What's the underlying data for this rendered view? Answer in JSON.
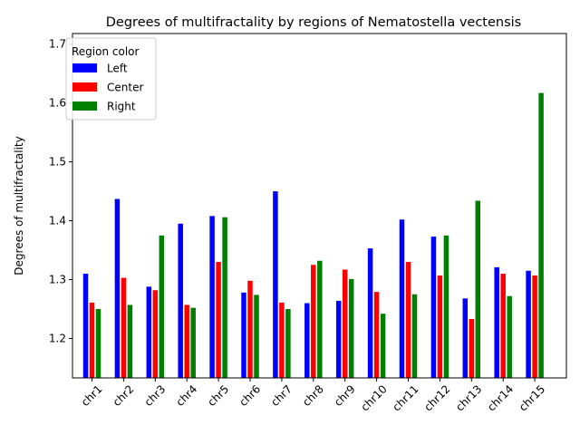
{
  "chart_data": {
    "type": "bar",
    "title": "Degrees of multifractality by regions of Nematostella vectensis",
    "xlabel": "",
    "ylabel": "Degrees of multifractality",
    "ylim": [
      1.133,
      1.718
    ],
    "yticks": [
      "1.2",
      "1.3",
      "1.4",
      "1.5",
      "1.6",
      "1.7"
    ],
    "grid": false,
    "legend": {
      "title": "Region color",
      "placement": "upper-left"
    },
    "categories": [
      "chr1",
      "chr2",
      "chr3",
      "chr4",
      "chr5",
      "chr6",
      "chr7",
      "chr8",
      "chr9",
      "chr10",
      "chr11",
      "chr12",
      "chr13",
      "chr14",
      "chr15"
    ],
    "series": [
      {
        "name": "Left",
        "color": "#0000ff",
        "values": [
          1.31,
          1.437,
          1.288,
          1.395,
          1.408,
          1.278,
          1.45,
          1.26,
          1.264,
          1.353,
          1.402,
          1.373,
          1.268,
          1.321,
          1.315
        ]
      },
      {
        "name": "Center",
        "color": "#ff0000",
        "values": [
          1.261,
          1.303,
          1.282,
          1.257,
          1.33,
          1.298,
          1.261,
          1.325,
          1.317,
          1.279,
          1.33,
          1.307,
          1.233,
          1.31,
          1.307
        ]
      },
      {
        "name": "Right",
        "color": "#008000",
        "values": [
          1.25,
          1.257,
          1.375,
          1.252,
          1.406,
          1.274,
          1.25,
          1.332,
          1.301,
          1.242,
          1.275,
          1.375,
          1.434,
          1.272,
          1.617
        ]
      }
    ]
  }
}
